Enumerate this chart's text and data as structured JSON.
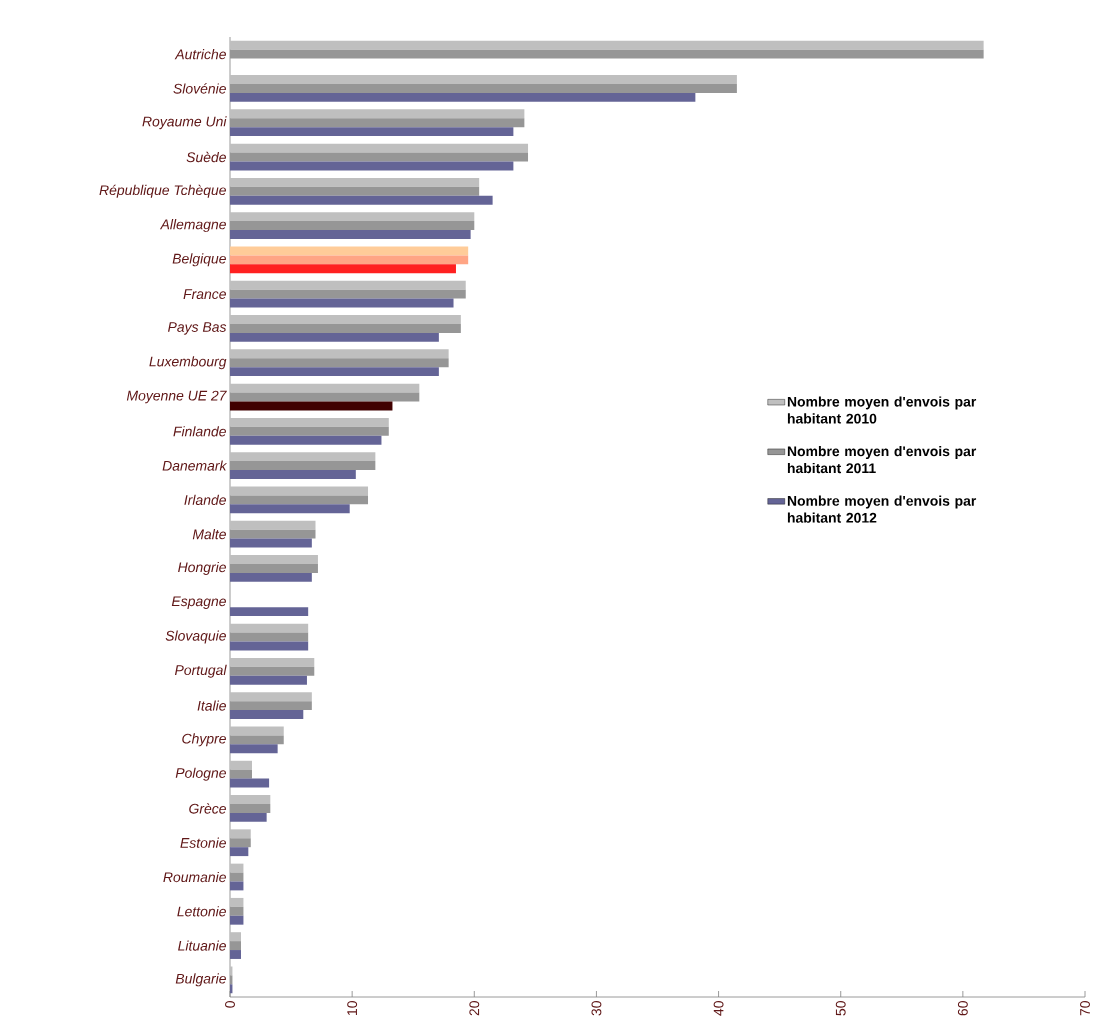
{
  "chart_data": {
    "type": "bar",
    "orientation": "horizontal",
    "categories": [
      "Autriche",
      "Slovénie",
      "Royaume Uni",
      "Suède",
      "République Tchèque",
      "Allemagne",
      "Belgique",
      "France",
      "Pays Bas",
      "Luxembourg",
      "Moyenne UE 27",
      "Finlande",
      "Danemark",
      "Irlande",
      "Malte",
      "Hongrie",
      "Espagne",
      "Slovaquie",
      "Portugal",
      "Italie",
      "Chypre",
      "Pologne",
      "Grèce",
      "Estonie",
      "Roumanie",
      "Lettonie",
      "Lituanie",
      "Bulgarie"
    ],
    "series": [
      {
        "name": "Nombre moyen d'envois par habitant 2010",
        "color": "#bfbfbf",
        "colors": [
          "#bfbfbf",
          "#bfbfbf",
          "#bfbfbf",
          "#bfbfbf",
          "#bfbfbf",
          "#bfbfbf",
          "#ffcc99",
          "#bfbfbf",
          "#bfbfbf",
          "#bfbfbf",
          "#bfbfbf",
          "#bfbfbf",
          "#bfbfbf",
          "#bfbfbf",
          "#bfbfbf",
          "#bfbfbf",
          "#bfbfbf",
          "#bfbfbf",
          "#bfbfbf",
          "#bfbfbf",
          "#bfbfbf",
          "#bfbfbf",
          "#bfbfbf",
          "#bfbfbf",
          "#bfbfbf",
          "#bfbfbf",
          "#bfbfbf",
          "#bfbfbf"
        ],
        "values": [
          61.7,
          41.5,
          24.1,
          24.4,
          20.4,
          20.0,
          19.5,
          19.3,
          18.9,
          17.9,
          15.5,
          13.0,
          11.9,
          11.3,
          7.0,
          7.2,
          null,
          6.4,
          6.9,
          6.7,
          4.4,
          1.8,
          3.3,
          1.7,
          1.1,
          1.1,
          0.9,
          0.2
        ]
      },
      {
        "name": "Nombre moyen d'envois par habitant 2011",
        "color": "#969696",
        "colors": [
          "#969696",
          "#969696",
          "#969696",
          "#969696",
          "#969696",
          "#969696",
          "#ffa585",
          "#969696",
          "#969696",
          "#969696",
          "#969696",
          "#969696",
          "#969696",
          "#969696",
          "#969696",
          "#969696",
          "#969696",
          "#969696",
          "#969696",
          "#969696",
          "#969696",
          "#969696",
          "#969696",
          "#969696",
          "#969696",
          "#969696",
          "#969696",
          "#969696"
        ],
        "values": [
          61.7,
          41.5,
          24.1,
          24.4,
          20.4,
          20.0,
          19.5,
          19.3,
          18.9,
          17.9,
          15.5,
          13.0,
          11.9,
          11.3,
          7.0,
          7.2,
          null,
          6.4,
          6.9,
          6.7,
          4.4,
          1.8,
          3.3,
          1.7,
          1.1,
          1.1,
          0.9,
          0.2
        ]
      },
      {
        "name": "Nombre moyen d'envois par habitant 2012",
        "color": "#646496",
        "colors": [
          "#646496",
          "#646496",
          "#646496",
          "#646496",
          "#646496",
          "#646496",
          "#ff2020",
          "#646496",
          "#646496",
          "#646496",
          "#400000",
          "#646496",
          "#646496",
          "#646496",
          "#646496",
          "#646496",
          "#646496",
          "#646496",
          "#646496",
          "#646496",
          "#646496",
          "#646496",
          "#646496",
          "#646496",
          "#646496",
          "#646496",
          "#646496",
          "#646496"
        ],
        "values": [
          null,
          38.1,
          23.2,
          23.2,
          21.5,
          19.7,
          18.5,
          18.3,
          17.1,
          17.1,
          13.3,
          12.4,
          10.3,
          9.8,
          6.7,
          6.7,
          6.4,
          6.4,
          6.3,
          6.0,
          3.9,
          3.2,
          3.0,
          1.5,
          1.1,
          1.1,
          0.9,
          0.2
        ]
      }
    ],
    "xlim": [
      0,
      70
    ],
    "xticks": [
      0,
      10,
      20,
      30,
      40,
      50,
      60,
      70
    ],
    "legend": "right"
  }
}
